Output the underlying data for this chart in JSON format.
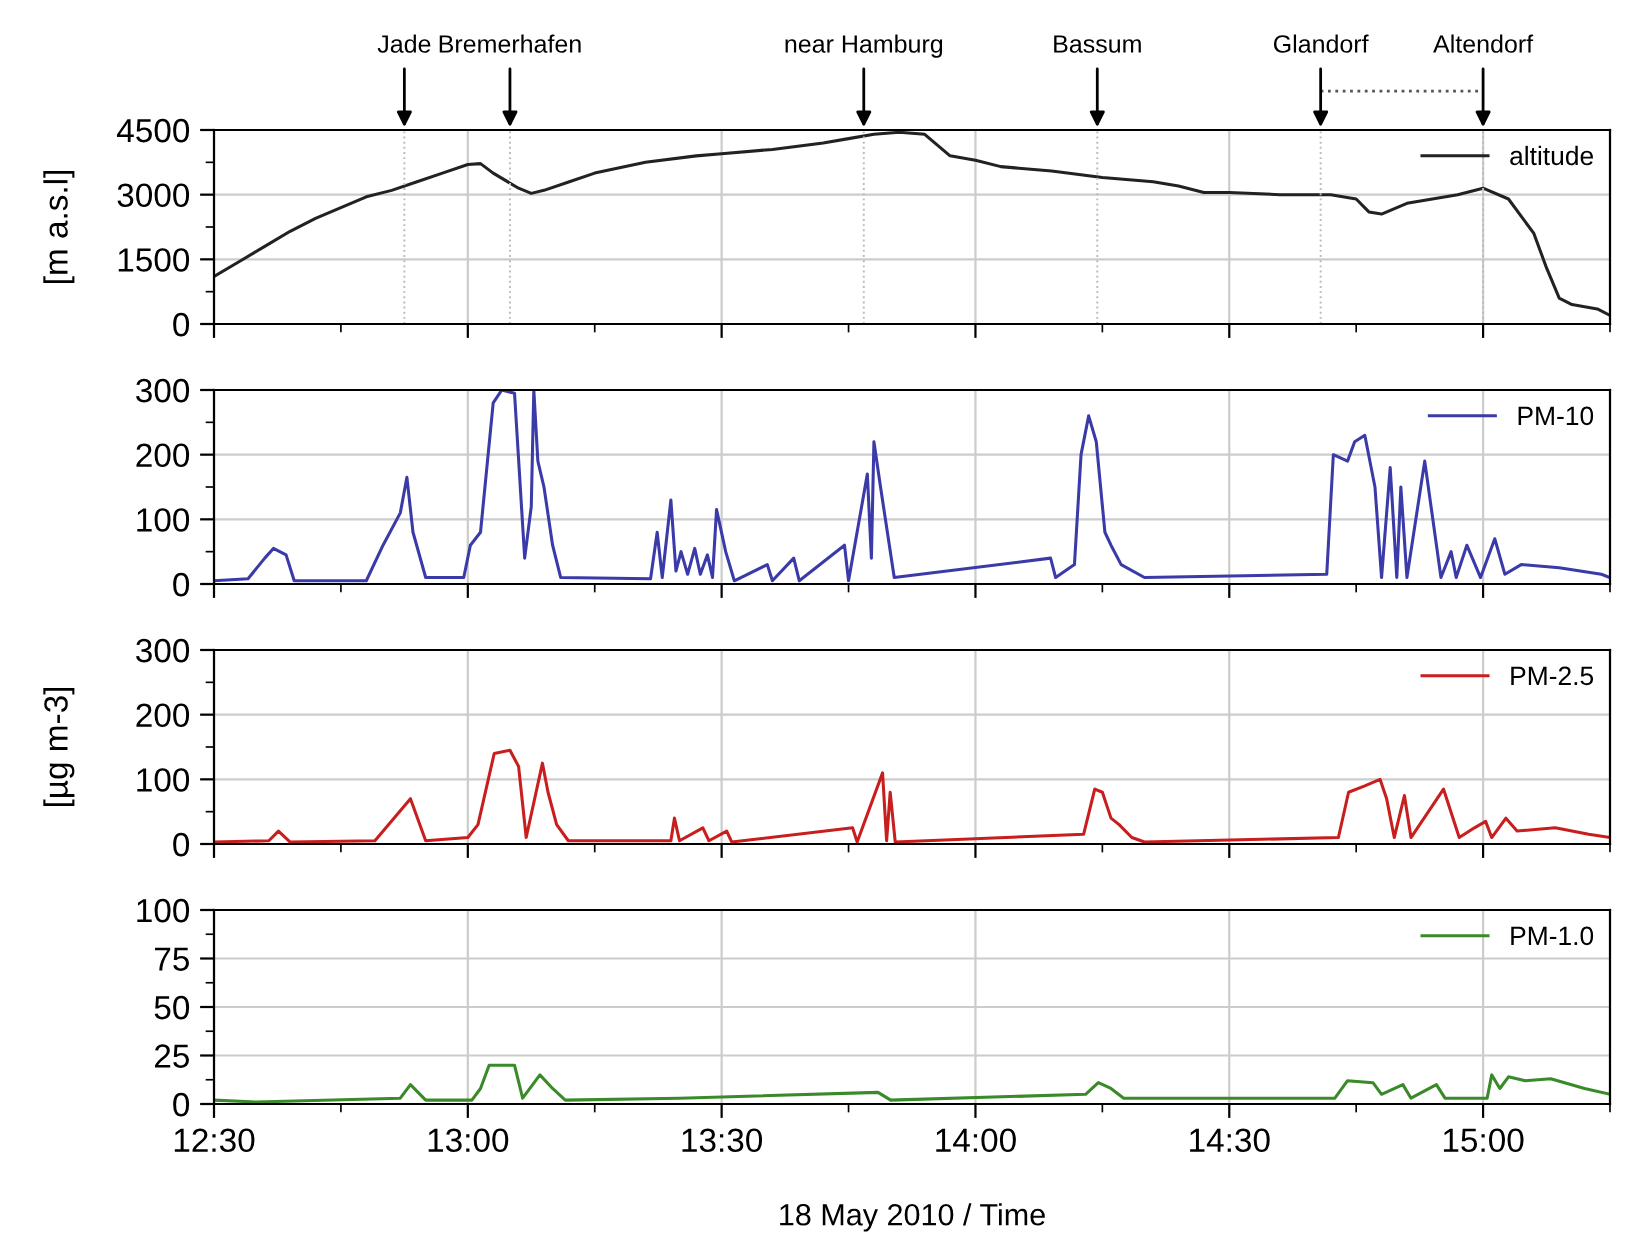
{
  "chart_data": [
    {
      "type": "line",
      "ylabel": "[m a.s.l]",
      "ylim": [
        0,
        4500
      ],
      "yticks": [
        0,
        1500,
        3000,
        4500
      ],
      "xlim": [
        12.5,
        15.25
      ],
      "xticks": [
        {
          "value": 12.5,
          "label": null
        },
        {
          "value": 13.0,
          "label": null
        },
        {
          "value": 13.5,
          "label": null
        },
        {
          "value": 14.0,
          "label": null
        },
        {
          "value": 14.5,
          "label": null
        },
        {
          "value": 15.0,
          "label": null
        }
      ],
      "ref_lines": [
        {
          "axis": "x",
          "value": 12.875,
          "label": "Jade"
        },
        {
          "axis": "x",
          "value": 13.083,
          "label": "Bremerhafen"
        },
        {
          "axis": "x",
          "value": 13.78,
          "label": "near Hamburg"
        },
        {
          "axis": "x",
          "value": 14.24,
          "label": "Bassum"
        },
        {
          "axis": "x",
          "value": 14.68,
          "label": "Glandorf"
        },
        {
          "axis": "x",
          "value": 15.0,
          "label": "Altendorf"
        }
      ],
      "tick_labels": "y",
      "grid": true,
      "legend": "top right",
      "series": [
        {
          "name": "altitude",
          "color": "#222222",
          "x": [
            12.5,
            12.55,
            12.6,
            12.65,
            12.7,
            12.75,
            12.8,
            12.85,
            12.9,
            12.95,
            13.0,
            13.025,
            13.05,
            13.1,
            13.125,
            13.15,
            13.2,
            13.25,
            13.35,
            13.45,
            13.5,
            13.6,
            13.7,
            13.75,
            13.8,
            13.85,
            13.9,
            13.95,
            14.0,
            14.05,
            14.15,
            14.25,
            14.35,
            14.4,
            14.45,
            14.5,
            14.6,
            14.7,
            14.75,
            14.775,
            14.8,
            14.85,
            14.95,
            15.0,
            15.05,
            15.1,
            15.125,
            15.15,
            15.175,
            15.225,
            15.25
          ],
          "values": [
            1100,
            1450,
            1800,
            2150,
            2450,
            2700,
            2950,
            3100,
            3300,
            3500,
            3700,
            3720,
            3500,
            3150,
            3030,
            3100,
            3300,
            3500,
            3750,
            3900,
            3950,
            4050,
            4200,
            4300,
            4400,
            4450,
            4400,
            3900,
            3800,
            3650,
            3550,
            3400,
            3300,
            3200,
            3050,
            3050,
            3000,
            3000,
            2900,
            2600,
            2550,
            2800,
            3000,
            3150,
            2900,
            2100,
            1300,
            600,
            450,
            350,
            200
          ]
        }
      ]
    },
    {
      "type": "line",
      "ylim": [
        0,
        300
      ],
      "yticks": [
        0,
        100,
        200,
        300
      ],
      "xlim": [
        12.5,
        15.25
      ],
      "xticks": [
        {
          "value": 12.5,
          "label": null
        },
        {
          "value": 13.0,
          "label": null
        },
        {
          "value": 13.5,
          "label": null
        },
        {
          "value": 14.0,
          "label": null
        },
        {
          "value": 14.5,
          "label": null
        },
        {
          "value": 15.0,
          "label": null
        }
      ],
      "tick_labels": "y",
      "grid": true,
      "legend": "top right",
      "series": [
        {
          "name": "PM-10",
          "color": "#3a3aa8",
          "x": [
            12.5,
            12.567,
            12.6,
            12.617,
            12.642,
            12.658,
            12.8,
            12.833,
            12.867,
            12.88,
            12.892,
            12.917,
            12.992,
            13.005,
            13.025,
            13.05,
            13.067,
            13.092,
            13.112,
            13.125,
            13.13,
            13.138,
            13.15,
            13.167,
            13.183,
            13.36,
            13.373,
            13.383,
            13.4,
            13.41,
            13.42,
            13.433,
            13.447,
            13.458,
            13.472,
            13.482,
            13.49,
            13.508,
            13.525,
            13.59,
            13.6,
            13.642,
            13.653,
            13.742,
            13.75,
            13.787,
            13.795,
            13.8,
            13.813,
            13.84,
            14.148,
            14.158,
            14.195,
            14.208,
            14.223,
            14.238,
            14.255,
            14.267,
            14.287,
            14.333,
            14.692,
            14.705,
            14.733,
            14.747,
            14.767,
            14.787,
            14.8,
            14.817,
            14.83,
            14.838,
            14.85,
            14.885,
            14.917,
            14.937,
            14.947,
            14.968,
            14.995,
            15.023,
            15.043,
            15.075,
            15.15,
            15.233,
            15.25
          ],
          "values": [
            5,
            8,
            40,
            55,
            45,
            5,
            5,
            60,
            110,
            165,
            80,
            10,
            10,
            60,
            80,
            280,
            300,
            295,
            40,
            120,
            300,
            190,
            150,
            60,
            10,
            8,
            80,
            10,
            130,
            20,
            50,
            15,
            55,
            15,
            45,
            10,
            115,
            50,
            5,
            30,
            5,
            40,
            5,
            60,
            5,
            170,
            40,
            220,
            150,
            10,
            40,
            10,
            30,
            200,
            260,
            220,
            80,
            60,
            30,
            10,
            15,
            200,
            190,
            220,
            230,
            150,
            10,
            180,
            10,
            150,
            10,
            190,
            10,
            50,
            10,
            60,
            10,
            70,
            15,
            30,
            25,
            15,
            10
          ]
        }
      ]
    },
    {
      "type": "line",
      "ylabel": "[µg m-3]",
      "ylim": [
        0,
        300
      ],
      "yticks": [
        0,
        100,
        200,
        300
      ],
      "xlim": [
        12.5,
        15.25
      ],
      "xticks": [
        {
          "value": 12.5,
          "label": null
        },
        {
          "value": 13.0,
          "label": null
        },
        {
          "value": 13.5,
          "label": null
        },
        {
          "value": 14.0,
          "label": null
        },
        {
          "value": 14.5,
          "label": null
        },
        {
          "value": 15.0,
          "label": null
        }
      ],
      "tick_labels": "y",
      "grid": true,
      "legend": "top right",
      "series": [
        {
          "name": "PM-2.5",
          "color": "#c81e1e",
          "x": [
            12.5,
            12.608,
            12.627,
            12.65,
            12.817,
            12.887,
            12.917,
            13.0,
            13.02,
            13.052,
            13.083,
            13.1,
            13.115,
            13.147,
            13.158,
            13.175,
            13.198,
            13.4,
            13.407,
            13.417,
            13.463,
            13.475,
            13.51,
            13.52,
            13.758,
            13.767,
            13.817,
            13.825,
            13.832,
            13.842,
            14.213,
            14.235,
            14.25,
            14.267,
            14.283,
            14.308,
            14.333,
            14.715,
            14.735,
            14.767,
            14.797,
            14.81,
            14.825,
            14.845,
            14.858,
            14.922,
            14.953,
            14.983,
            15.005,
            15.017,
            15.045,
            15.067,
            15.142,
            15.208,
            15.25
          ],
          "values": [
            3,
            5,
            20,
            3,
            5,
            70,
            5,
            10,
            30,
            140,
            145,
            120,
            10,
            125,
            80,
            30,
            5,
            5,
            40,
            5,
            25,
            5,
            20,
            3,
            25,
            3,
            110,
            5,
            80,
            3,
            15,
            85,
            80,
            40,
            30,
            10,
            3,
            10,
            80,
            90,
            100,
            70,
            10,
            75,
            10,
            85,
            10,
            25,
            35,
            10,
            40,
            20,
            25,
            15,
            10
          ]
        }
      ]
    },
    {
      "type": "line",
      "xlabel": "18 May 2010 / Time",
      "ylim": [
        0,
        100
      ],
      "yticks": [
        0,
        25,
        50,
        75,
        100
      ],
      "xlim": [
        12.5,
        15.25
      ],
      "xticks": [
        {
          "value": 12.5,
          "label": "12:30"
        },
        {
          "value": 13.0,
          "label": "13:00"
        },
        {
          "value": 13.5,
          "label": "13:30"
        },
        {
          "value": 14.0,
          "label": "14:00"
        },
        {
          "value": 14.5,
          "label": "14:30"
        },
        {
          "value": 15.0,
          "label": "15:00"
        }
      ],
      "grid": true,
      "legend": "top right",
      "series": [
        {
          "name": "PM-1.0",
          "color": "#3a8a2a",
          "x": [
            12.5,
            12.583,
            12.867,
            12.887,
            12.917,
            13.008,
            13.025,
            13.042,
            13.092,
            13.108,
            13.142,
            13.167,
            13.192,
            13.417,
            13.808,
            13.833,
            14.217,
            14.242,
            14.267,
            14.292,
            14.708,
            14.733,
            14.783,
            14.8,
            14.842,
            14.858,
            14.908,
            14.925,
            15.008,
            15.017,
            15.033,
            15.05,
            15.083,
            15.133,
            15.2,
            15.25
          ],
          "values": [
            2,
            1,
            3,
            10,
            2,
            2,
            8,
            20,
            20,
            3,
            15,
            8,
            2,
            3,
            6,
            2,
            5,
            11,
            8,
            3,
            3,
            12,
            11,
            5,
            10,
            3,
            10,
            3,
            3,
            15,
            8,
            14,
            12,
            13,
            8,
            5
          ]
        }
      ]
    }
  ]
}
